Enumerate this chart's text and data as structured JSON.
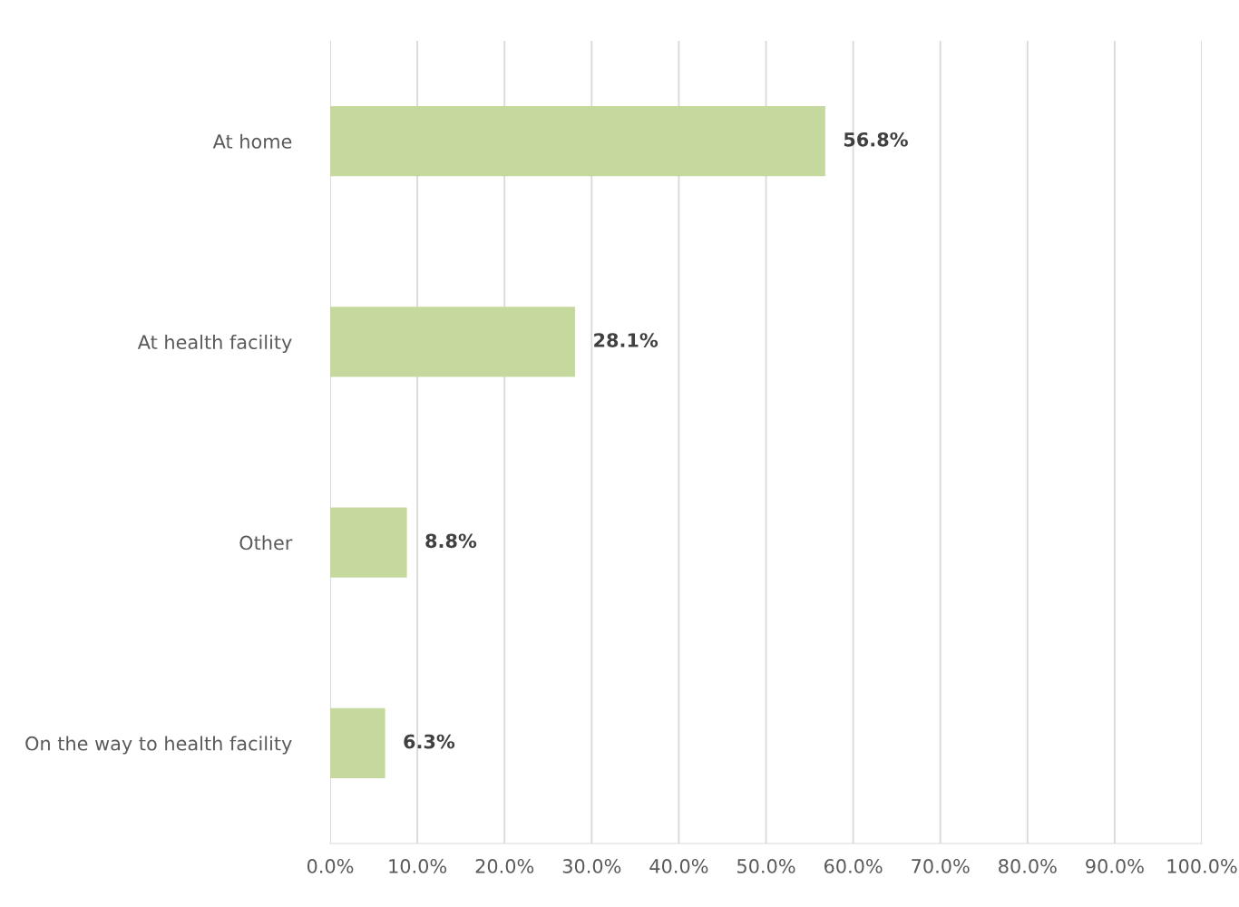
{
  "chart_data": {
    "type": "bar",
    "orientation": "horizontal",
    "categories": [
      "At home",
      "At health facility",
      "Other",
      "On the way to health facility"
    ],
    "values": [
      56.8,
      28.1,
      8.8,
      6.3
    ],
    "value_labels": [
      "56.8%",
      "28.1%",
      "8.8%",
      "6.3%"
    ],
    "color": "#c5d89d",
    "xlim": [
      0,
      100
    ],
    "xticks": [
      {
        "value": 0,
        "label": "0.0%"
      },
      {
        "value": 10,
        "label": "10.0%"
      },
      {
        "value": 20,
        "label": "20.0%"
      },
      {
        "value": 30,
        "label": "30.0%"
      },
      {
        "value": 40,
        "label": "40.0%"
      },
      {
        "value": 50,
        "label": "50.0%"
      },
      {
        "value": 60,
        "label": "60.0%"
      },
      {
        "value": 70,
        "label": "70.0%"
      },
      {
        "value": 80,
        "label": "80.0%"
      },
      {
        "value": 90,
        "label": "90.0%"
      },
      {
        "value": 100,
        "label": "100.0%"
      }
    ],
    "grid": "x",
    "legend": false
  }
}
